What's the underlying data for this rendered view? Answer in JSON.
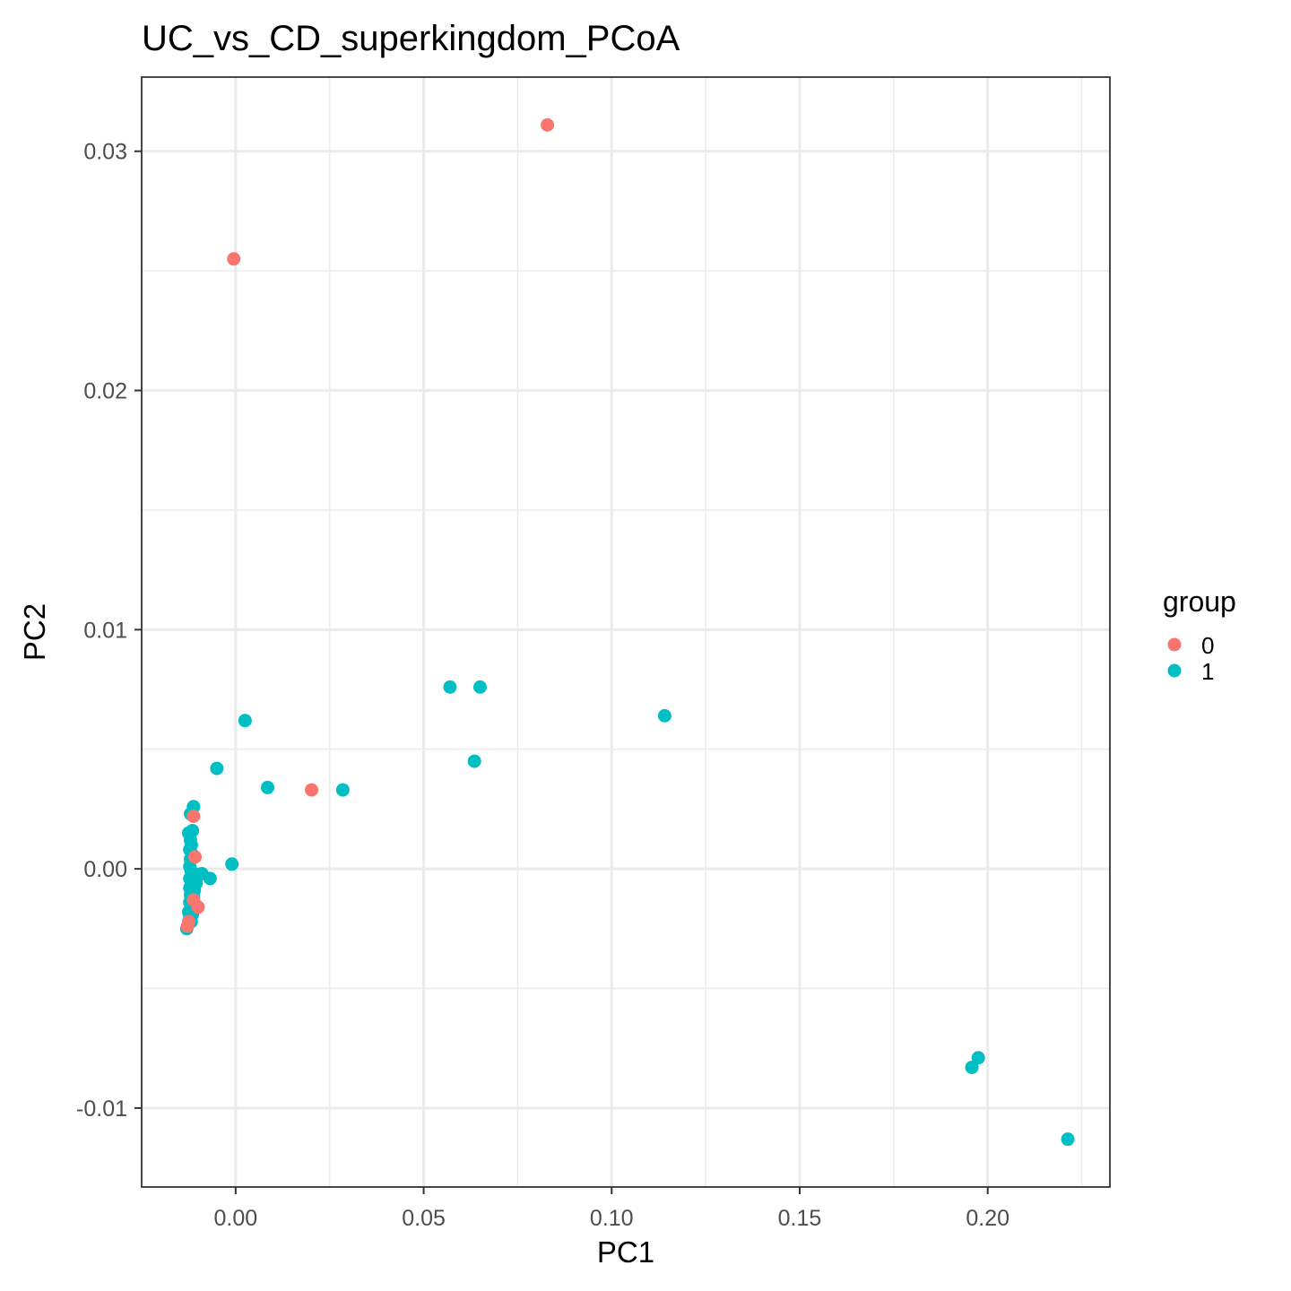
{
  "chart_data": {
    "type": "scatter",
    "title": "UC_vs_CD_superkingdom_PCoA",
    "xlabel": "PC1",
    "ylabel": "PC2",
    "xlim": [
      -0.025,
      0.2325
    ],
    "ylim": [
      -0.0133,
      0.0331
    ],
    "x_major_ticks": [
      0.0,
      0.05,
      0.1,
      0.15,
      0.2
    ],
    "x_tick_labels": [
      "0.00",
      "0.05",
      "0.10",
      "0.15",
      "0.20"
    ],
    "x_minor_ticks": [
      -0.025,
      0.025,
      0.075,
      0.125,
      0.175,
      0.225
    ],
    "y_major_ticks": [
      -0.01,
      0.0,
      0.01,
      0.02,
      0.03
    ],
    "y_tick_labels": [
      "-0.01",
      "0.00",
      "0.01",
      "0.02",
      "0.03"
    ],
    "y_minor_ticks": [
      -0.005,
      0.005,
      0.015,
      0.025
    ],
    "grid": true,
    "legend": {
      "title": "group",
      "position": "right"
    },
    "series": [
      {
        "name": "0",
        "color": "#F8766D",
        "points": [
          [
            0.0829,
            0.0311
          ],
          [
            -0.0005,
            0.0255
          ],
          [
            0.0202,
            0.0033
          ],
          [
            -0.0112,
            0.0022
          ],
          [
            -0.0108,
            0.0005
          ],
          [
            -0.01,
            -0.0016
          ],
          [
            -0.0112,
            -0.0013
          ],
          [
            -0.0125,
            -0.0022
          ],
          [
            -0.0128,
            -0.0024
          ]
        ]
      },
      {
        "name": "1",
        "color": "#00BFC4",
        "points": [
          [
            0.057,
            0.0076
          ],
          [
            0.065,
            0.0076
          ],
          [
            0.1141,
            0.0064
          ],
          [
            0.0025,
            0.0062
          ],
          [
            0.0635,
            0.0045
          ],
          [
            -0.005,
            0.0042
          ],
          [
            0.0085,
            0.0034
          ],
          [
            0.0285,
            0.0033
          ],
          [
            -0.001,
            0.0002
          ],
          [
            -0.0068,
            -0.0004
          ],
          [
            0.1975,
            -0.0079
          ],
          [
            0.1958,
            -0.0083
          ],
          [
            0.2213,
            -0.0113
          ],
          [
            -0.0112,
            0.0026
          ],
          [
            -0.012,
            0.0023
          ],
          [
            -0.0115,
            0.0016
          ],
          [
            -0.0125,
            0.0015
          ],
          [
            -0.012,
            0.0012
          ],
          [
            -0.0118,
            0.001
          ],
          [
            -0.0122,
            0.0008
          ],
          [
            -0.0115,
            0.0006
          ],
          [
            -0.012,
            0.0004
          ],
          [
            -0.0122,
            0.0001
          ],
          [
            -0.0118,
            -0.0001
          ],
          [
            -0.011,
            -0.0002
          ],
          [
            -0.009,
            -0.0002
          ],
          [
            -0.0122,
            -0.0004
          ],
          [
            -0.0115,
            -0.0006
          ],
          [
            -0.0105,
            -0.0006
          ],
          [
            -0.0122,
            -0.0008
          ],
          [
            -0.011,
            -0.0009
          ],
          [
            -0.012,
            -0.0011
          ],
          [
            -0.0112,
            -0.0012
          ],
          [
            -0.0122,
            -0.0014
          ],
          [
            -0.011,
            -0.0015
          ],
          [
            -0.0118,
            -0.0017
          ],
          [
            -0.0125,
            -0.0018
          ],
          [
            -0.0115,
            -0.0019
          ],
          [
            -0.0122,
            -0.002
          ],
          [
            -0.0118,
            -0.0022
          ],
          [
            -0.0125,
            -0.0023
          ],
          [
            -0.013,
            -0.0025
          ]
        ]
      }
    ]
  }
}
